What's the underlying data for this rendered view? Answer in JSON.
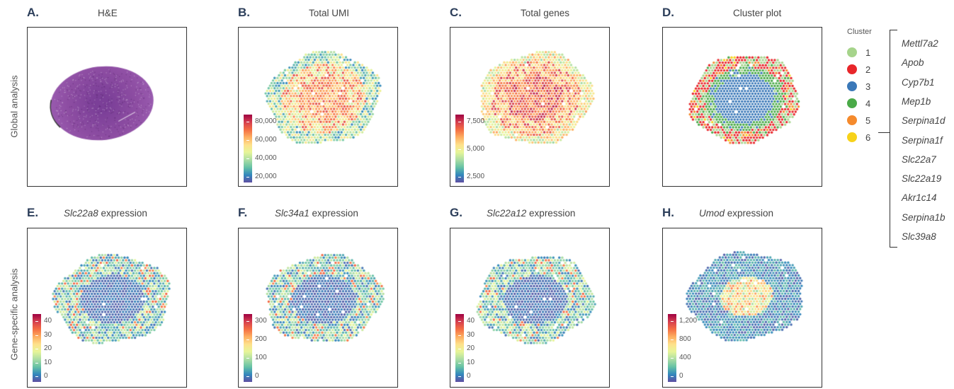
{
  "row_labels": {
    "top": "Global analysis",
    "bottom": "Gene-specific analysis"
  },
  "panels": [
    {
      "id": "A",
      "letter": "A.",
      "title_italic": "",
      "title": "H&E",
      "type": "he"
    },
    {
      "id": "B",
      "letter": "B.",
      "title_italic": "",
      "title": "Total UMI",
      "type": "umi",
      "colorbar": {
        "ticks": [
          "80,000",
          "60,000",
          "40,000",
          "20,000"
        ]
      }
    },
    {
      "id": "C",
      "letter": "C.",
      "title_italic": "",
      "title": "Total genes",
      "type": "genes",
      "colorbar": {
        "ticks": [
          "7,500",
          "5,000",
          "2,500"
        ]
      }
    },
    {
      "id": "D",
      "letter": "D.",
      "title_italic": "",
      "title": "Cluster plot",
      "type": "cluster"
    },
    {
      "id": "E",
      "letter": "E.",
      "title_italic": "Slc22a8",
      "title": " expression",
      "type": "slc22a8",
      "colorbar": {
        "ticks": [
          "40",
          "30",
          "20",
          "10",
          "0"
        ]
      }
    },
    {
      "id": "F",
      "letter": "F.",
      "title_italic": "Slc34a1",
      "title": " expression",
      "type": "slc34a1",
      "colorbar": {
        "ticks": [
          "300",
          "200",
          "100",
          "0"
        ]
      }
    },
    {
      "id": "G",
      "letter": "G.",
      "title_italic": "Slc22a12",
      "title": " expression",
      "type": "slc22a12",
      "colorbar": {
        "ticks": [
          "40",
          "30",
          "20",
          "10",
          "0"
        ]
      }
    },
    {
      "id": "H",
      "letter": "H.",
      "title_italic": "Umod",
      "title": " expression",
      "type": "umod",
      "colorbar": {
        "ticks": [
          "1,200",
          "800",
          "400",
          "0"
        ]
      }
    }
  ],
  "legend": {
    "title": "Cluster",
    "items": [
      {
        "label": "1",
        "color": "#a6d48b"
      },
      {
        "label": "2",
        "color": "#e8262a"
      },
      {
        "label": "3",
        "color": "#3a78b8"
      },
      {
        "label": "4",
        "color": "#4aaa48"
      },
      {
        "label": "5",
        "color": "#f58a2c"
      },
      {
        "label": "6",
        "color": "#f7d21a"
      }
    ]
  },
  "genes": [
    "Mettl7a2",
    "Apob",
    "Cyp7b1",
    "Mep1b",
    "Serpina1d",
    "Serpina1f",
    "Slc22a7",
    "Slc22a19",
    "Akr1c14",
    "Serpina1b",
    "Slc39a8"
  ],
  "colors": {
    "he_purple": "#8e4ea3",
    "border": "#333333",
    "letter": "#2c3e5a"
  }
}
